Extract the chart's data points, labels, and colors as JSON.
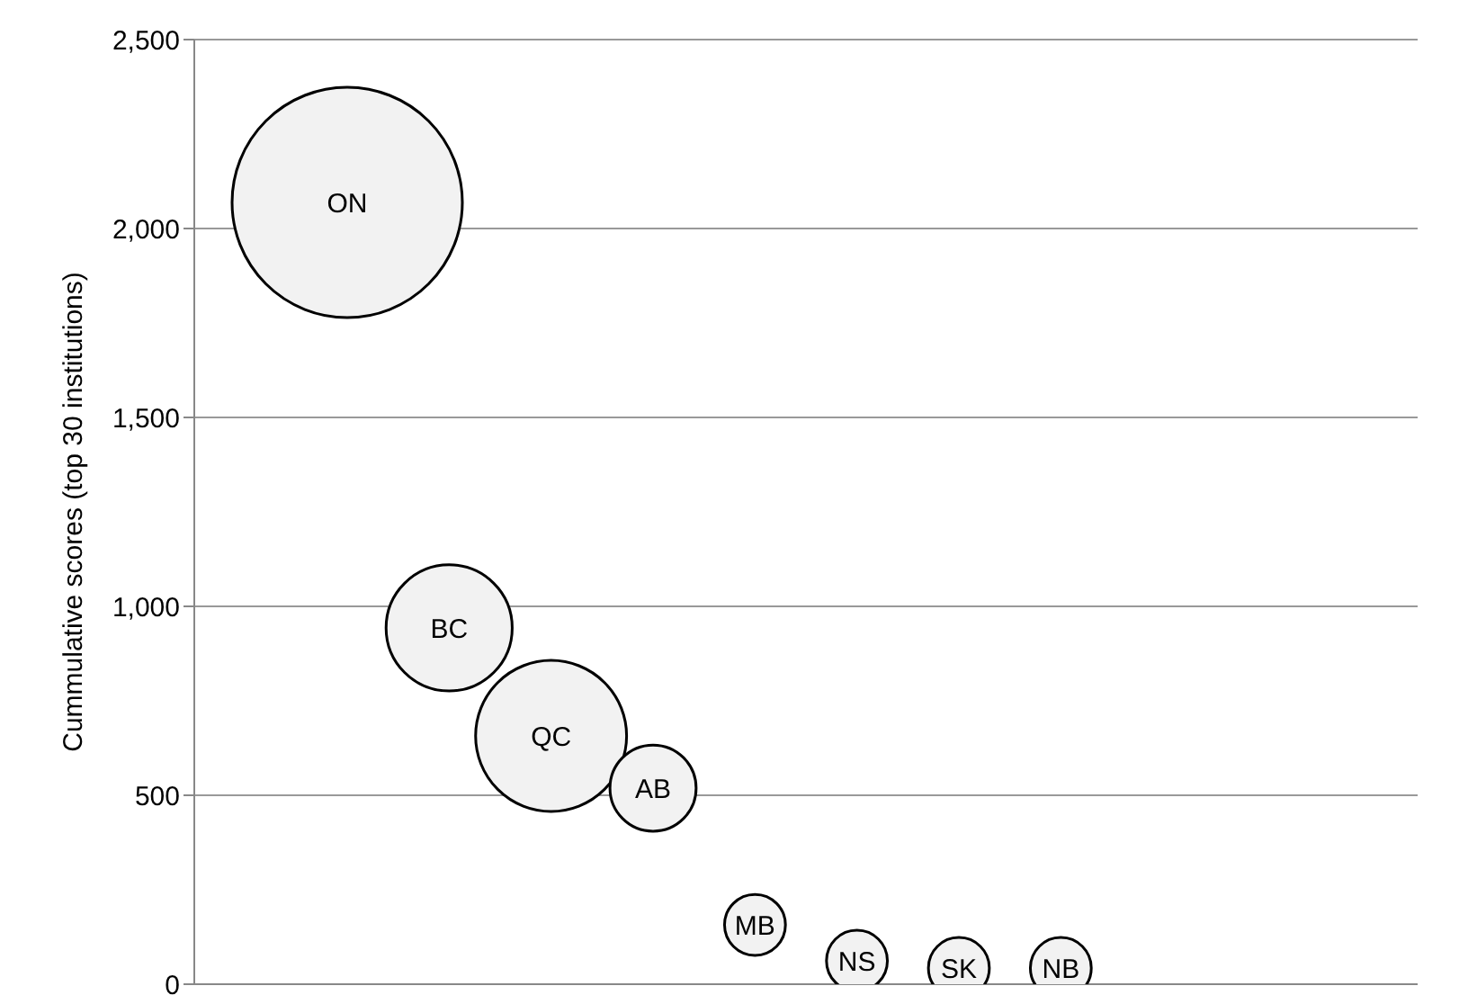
{
  "chart_data": {
    "type": "bubble",
    "ylabel": "Cummulative scores (top 30 institutions)",
    "categories": [
      null,
      null,
      null,
      null,
      null,
      null,
      null,
      null,
      null,
      null,
      null,
      null
    ],
    "values": [
      null,
      2069,
      943,
      657,
      519,
      157,
      62,
      43,
      43,
      null,
      null,
      null
    ],
    "sizes": [
      null,
      1,
      0.3,
      0.43,
      0.14,
      0.07,
      0.07,
      0.07,
      0.07,
      null,
      null,
      null
    ],
    "color": "#f2f2f2",
    "ylim": [
      0,
      2500
    ],
    "yticks": [
      0,
      500,
      {
        "value": 1000,
        "label": "1,000"
      },
      {
        "value": 1500,
        "label": "1,500"
      },
      {
        "value": 2000,
        "label": "2,000"
      },
      {
        "value": 2500,
        "label": "2,500"
      }
    ],
    "tick_labels": "y",
    "grid": "y",
    "legend": false,
    "annotations": [
      "ON",
      "BC",
      "QC",
      "AB",
      "MB",
      "NS",
      "SK",
      "NB"
    ]
  }
}
